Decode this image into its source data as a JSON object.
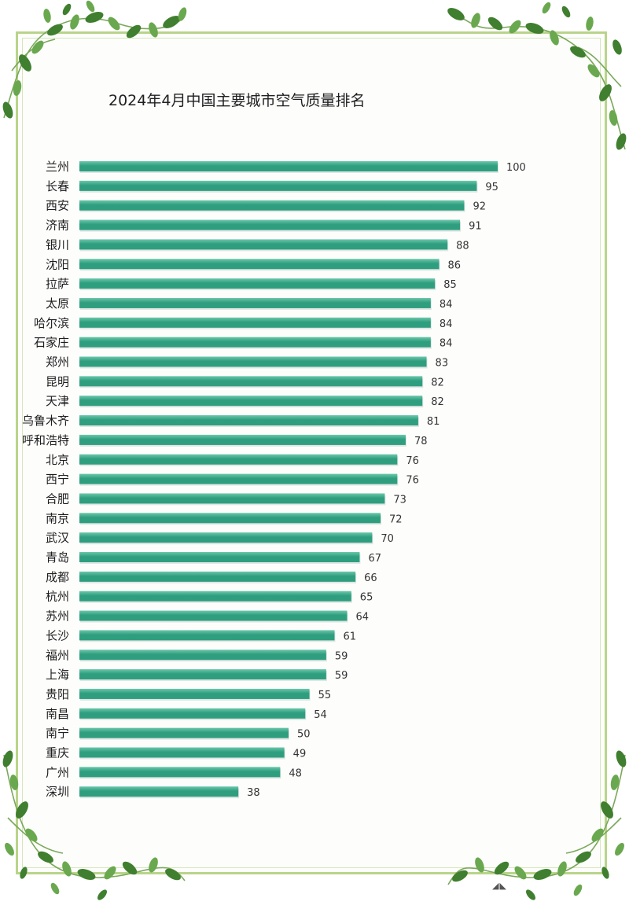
{
  "chart_data": {
    "type": "bar",
    "orientation": "horizontal",
    "title": "2024年4月中国主要城市空气质量排名",
    "categories": [
      "兰州",
      "长春",
      "西安",
      "济南",
      "银川",
      "沈阳",
      "拉萨",
      "太原",
      "哈尔滨",
      "石家庄",
      "郑州",
      "昆明",
      "天津",
      "乌鲁木齐",
      "呼和浩特",
      "北京",
      "西宁",
      "合肥",
      "南京",
      "武汉",
      "青岛",
      "成都",
      "杭州",
      "苏州",
      "长沙",
      "福州",
      "上海",
      "贵阳",
      "南昌",
      "南宁",
      "重庆",
      "广州",
      "深圳"
    ],
    "values": [
      100,
      95,
      92,
      91,
      88,
      86,
      85,
      84,
      84,
      84,
      83,
      82,
      82,
      81,
      78,
      76,
      76,
      73,
      72,
      70,
      67,
      66,
      65,
      64,
      61,
      59,
      59,
      55,
      54,
      50,
      49,
      48,
      38
    ],
    "xlim": [
      0,
      100
    ],
    "grid": false,
    "legend": "none",
    "bar_color": "#2f9e7f",
    "bar_highlight": "#6cc7aa"
  },
  "decoration": {
    "leaf_color": "#6aa84f",
    "leaf_dark": "#3f7f2f",
    "vine_color": "#7aa85a",
    "watermark_icon": "bird-icon"
  }
}
